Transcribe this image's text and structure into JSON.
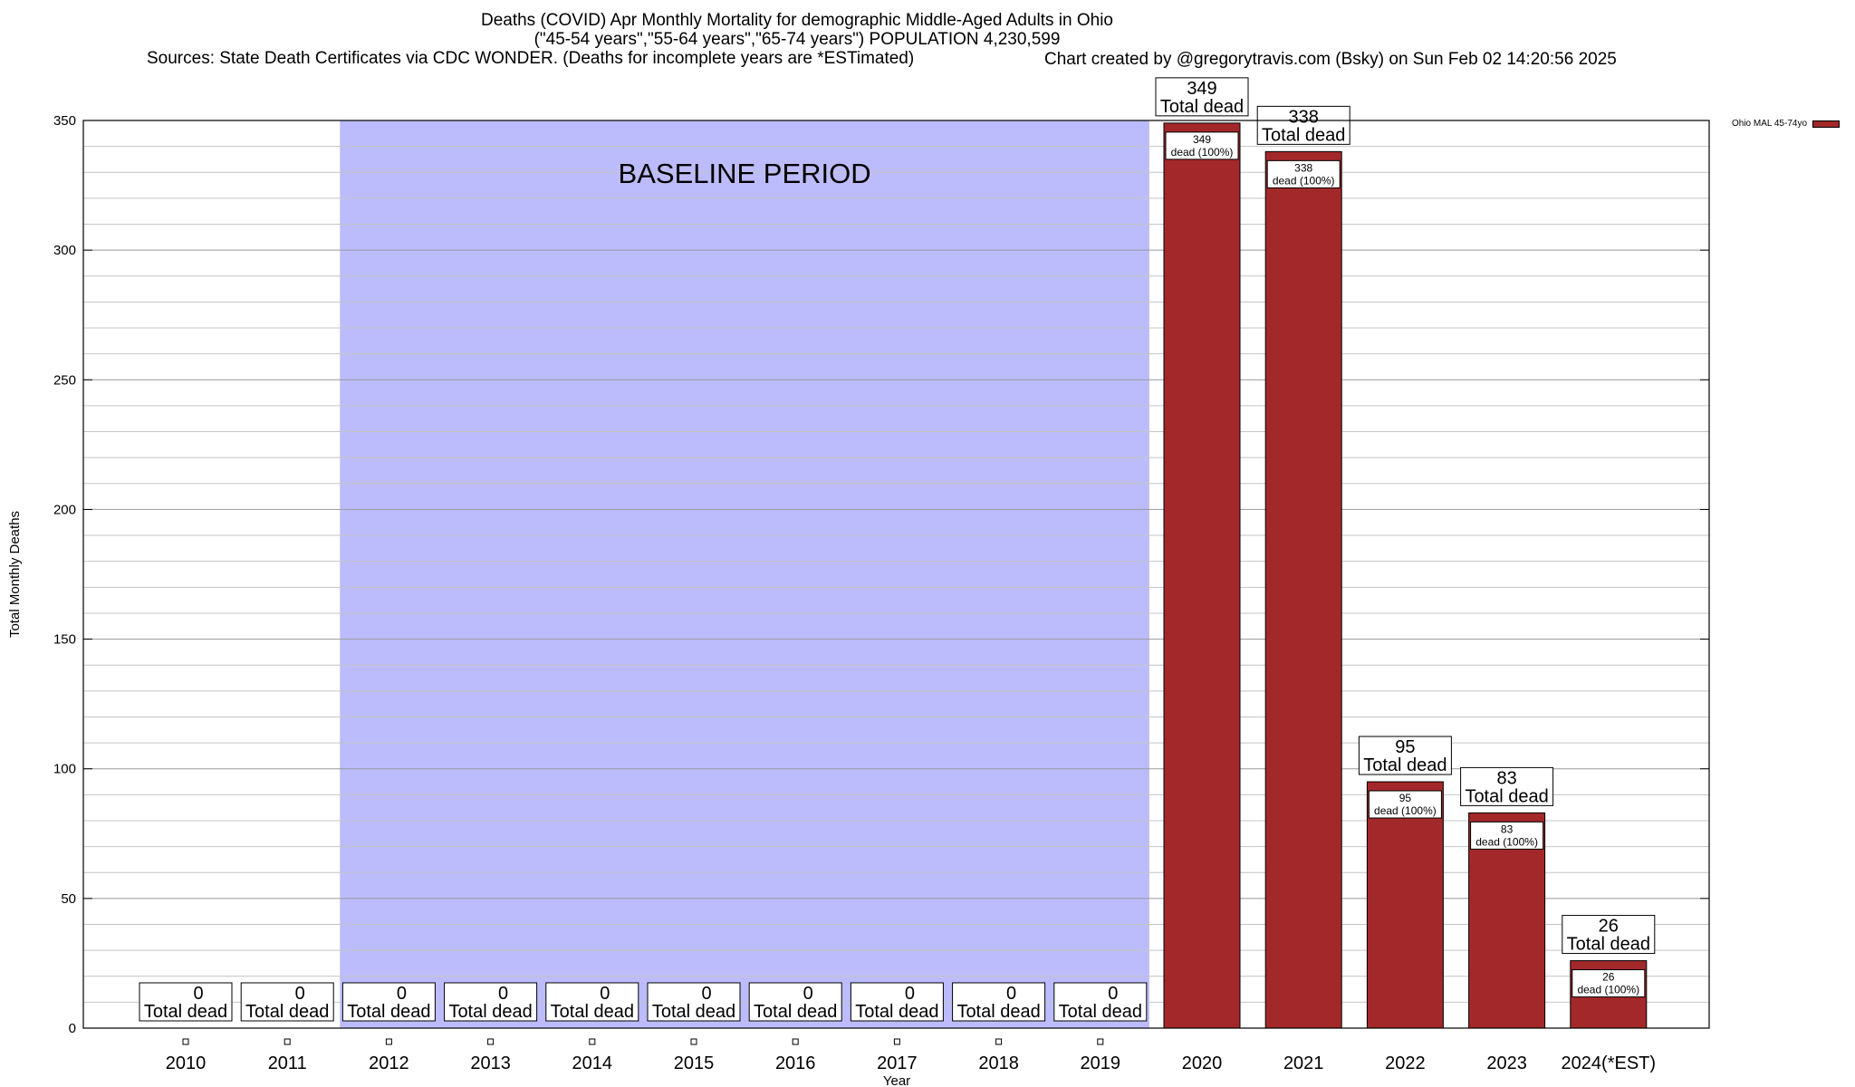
{
  "chart_data": {
    "type": "bar",
    "title": "Deaths (COVID) Apr Monthly Mortality for demographic Middle-Aged Adults in Ohio",
    "subtitle": "(\"45-54 years\",\"55-64 years\",\"65-74 years\") POPULATION 4,230,599",
    "sources": "Sources: State Death Certificates via CDC WONDER. (Deaths for incomplete years are *ESTimated)",
    "credit": "Chart created by @gregorytravis.com (Bsky) on Sun Feb 02 14:20:56 2025",
    "xlabel": "Year",
    "ylabel": "Total Monthly Deaths",
    "ylim": [
      0,
      350
    ],
    "yticks": [
      0,
      50,
      100,
      150,
      200,
      250,
      300,
      350
    ],
    "categories": [
      "2010",
      "2011",
      "2012",
      "2013",
      "2014",
      "2015",
      "2016",
      "2017",
      "2018",
      "2019",
      "2020",
      "2021",
      "2022",
      "2023",
      "2024(*EST)"
    ],
    "series": [
      {
        "name": "Ohio MAL 45-74yo",
        "color": "#a3282a",
        "values": [
          0,
          0,
          0,
          0,
          0,
          0,
          0,
          0,
          0,
          0,
          349,
          338,
          95,
          83,
          26
        ]
      }
    ],
    "total_label": "Total dead",
    "segment_label": "dead (100%)",
    "baseline": {
      "label": "BASELINE PERIOD",
      "from": "2012",
      "to": "2019",
      "color": "#bcbcfc"
    },
    "grid": true,
    "legend_position": "top-right"
  }
}
